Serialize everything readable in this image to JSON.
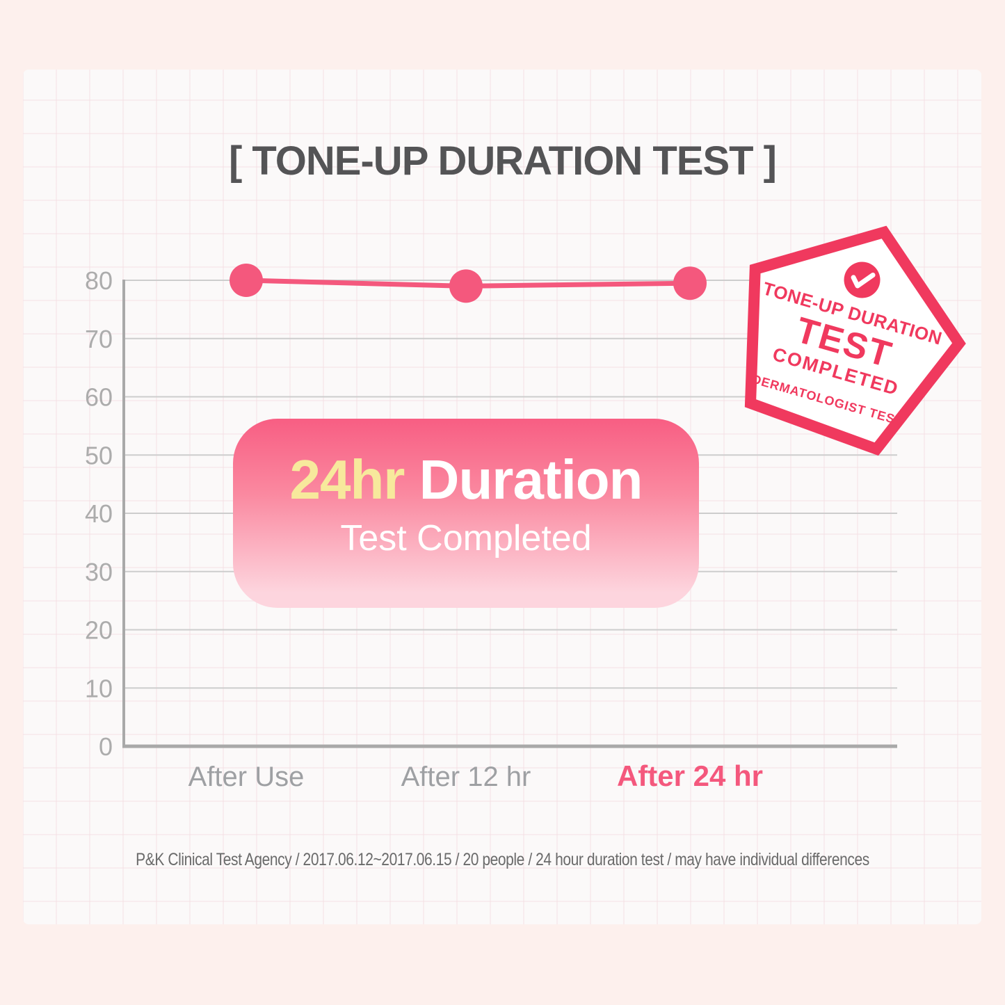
{
  "page": {
    "title": "[ TONE-UP DURATION TEST ]",
    "footer": "P&K Clinical Test Agency / 2017.06.12~2017.06.15 / 20 people / 24 hour duration test / may have individual differences"
  },
  "chart_data": {
    "type": "line",
    "categories": [
      "After Use",
      "After 12 hr",
      "After 24 hr"
    ],
    "values": [
      80,
      79,
      79.5
    ],
    "yticks": [
      0,
      10,
      20,
      30,
      40,
      50,
      60,
      70,
      80
    ],
    "ylim": [
      0,
      80
    ],
    "grid": true,
    "highlight_category": "After 24 hr",
    "legend": "none"
  },
  "overlay_box": {
    "line1_highlight": "24hr",
    "line1_rest": " Duration",
    "line2": "Test Completed"
  },
  "badge": {
    "icon": "check-icon",
    "line1": "TONE-UP DURATION",
    "line2": "TEST",
    "line3": "COMPLETED",
    "line4": "DERMATOLOGIST TEST"
  },
  "colors": {
    "accent_pink": "#F4587D",
    "badge_pink": "#F0395E",
    "box_grad_top": "#F85E83",
    "box_grad_mid": "#FA89A0",
    "box_grad_bottom": "#FDD5DE",
    "highlight_yellow": "#F7E99C",
    "title_gray": "#545456",
    "axis_gray": "#A9A9A9",
    "tick_gray": "#ACACAC",
    "xlabel_gray": "#9EA0A3",
    "grid_gray": "#CDCDCD",
    "footer_gray": "#6A6A6A",
    "outer_bg": "#FDF0ED",
    "panel_bg": "#FBF9F9"
  }
}
